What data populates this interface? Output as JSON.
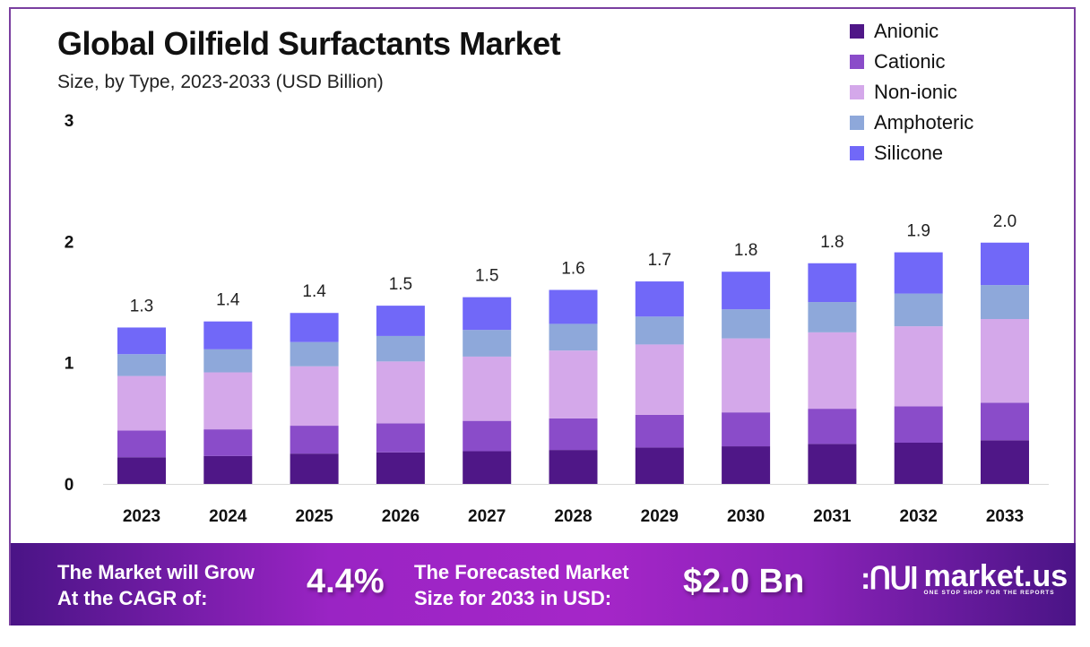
{
  "header": {
    "title": "Global Oilfield Surfactants Market",
    "subtitle": "Size, by Type, 2023-2033 (USD Billion)"
  },
  "legend": [
    {
      "label": "Anionic",
      "color": "#4f1787"
    },
    {
      "label": "Cationic",
      "color": "#8a4cc9"
    },
    {
      "label": "Non-ionic",
      "color": "#d4a8ea"
    },
    {
      "label": "Amphoteric",
      "color": "#8ea8da"
    },
    {
      "label": "Silicone",
      "color": "#7168f8"
    }
  ],
  "chart_data": {
    "type": "bar",
    "stacked": true,
    "title": "Global Oilfield Surfactants Market",
    "subtitle": "Size, by Type, 2023-2033 (USD Billion)",
    "xlabel": "",
    "ylabel": "",
    "ylim": [
      0,
      3
    ],
    "yticks": [
      "0",
      "1",
      "2",
      "3"
    ],
    "grid": false,
    "legend_position": "top-right",
    "categories": [
      "2023",
      "2024",
      "2025",
      "2026",
      "2027",
      "2028",
      "2029",
      "2030",
      "2031",
      "2032",
      "2033"
    ],
    "series": [
      {
        "name": "Anionic",
        "color": "#4f1787",
        "values": [
          0.22,
          0.23,
          0.25,
          0.26,
          0.27,
          0.28,
          0.3,
          0.31,
          0.33,
          0.34,
          0.36
        ]
      },
      {
        "name": "Cationic",
        "color": "#8a4cc9",
        "values": [
          0.22,
          0.22,
          0.23,
          0.24,
          0.25,
          0.26,
          0.27,
          0.28,
          0.29,
          0.3,
          0.31
        ]
      },
      {
        "name": "Non-ionic",
        "color": "#d4a8ea",
        "values": [
          0.45,
          0.47,
          0.49,
          0.51,
          0.53,
          0.56,
          0.58,
          0.61,
          0.63,
          0.66,
          0.69
        ]
      },
      {
        "name": "Amphoteric",
        "color": "#8ea8da",
        "values": [
          0.18,
          0.19,
          0.2,
          0.21,
          0.22,
          0.22,
          0.23,
          0.24,
          0.25,
          0.27,
          0.28
        ]
      },
      {
        "name": "Silicone",
        "color": "#7168f8",
        "values": [
          0.22,
          0.23,
          0.24,
          0.25,
          0.27,
          0.28,
          0.29,
          0.31,
          0.32,
          0.34,
          0.35
        ]
      }
    ],
    "totals_labels": [
      "1.3",
      "1.4",
      "1.4",
      "1.5",
      "1.5",
      "1.6",
      "1.7",
      "1.8",
      "1.8",
      "1.9",
      "2.0"
    ]
  },
  "banner": {
    "cagr_text_line1": "The Market will Grow",
    "cagr_text_line2": "At the CAGR of:",
    "cagr_value": "4.4%",
    "forecast_text_line1": "The Forecasted Market",
    "forecast_text_line2": "Size for 2033 in USD:",
    "forecast_value": "$2.0 Bn",
    "brand_name": "market.us",
    "brand_tagline": "ONE STOP SHOP FOR THE REPORTS"
  }
}
